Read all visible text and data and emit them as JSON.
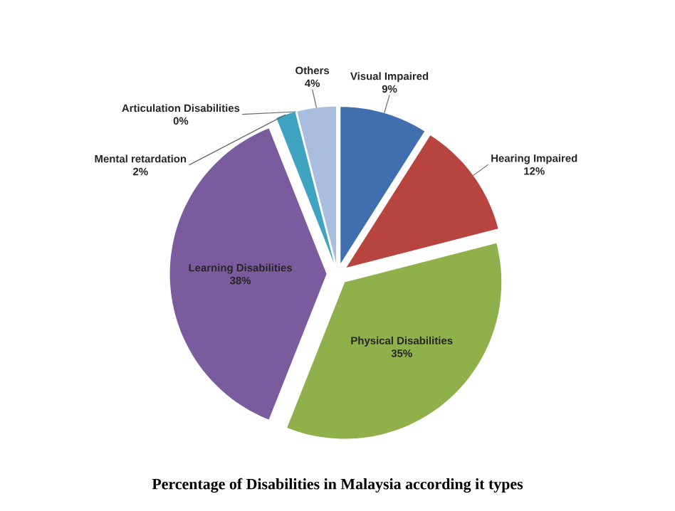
{
  "chart_data": {
    "type": "pie",
    "title": "Percentage of Disabilities in Malaysia according it types",
    "categories": [
      "Visual Impaired",
      "Hearing Impaired",
      "Physical Disabilities",
      "Learning Disabilities",
      "Mental retardation",
      "Articulation Disabilities",
      "Others"
    ],
    "values": [
      9,
      12,
      35,
      38,
      2,
      0,
      4
    ],
    "colors": [
      "#3f6fae",
      "#b8443f",
      "#8fb04a",
      "#7a5c9e",
      "#3ea4c2",
      "#8da7cf",
      "#a9bedf"
    ],
    "value_labels": [
      "9%",
      "12%",
      "35%",
      "38%",
      "2%",
      "0%",
      "4%"
    ]
  }
}
